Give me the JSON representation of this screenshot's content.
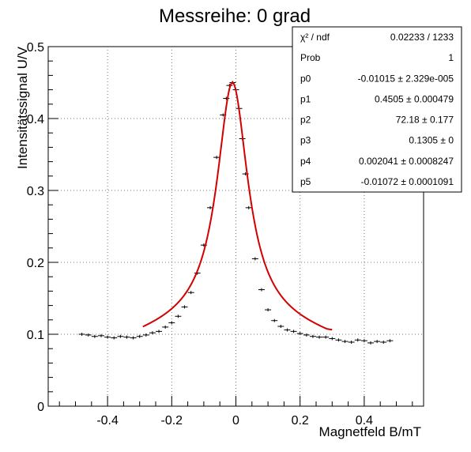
{
  "chart_data": {
    "type": "scatter",
    "title": "Messreihe: 0 grad",
    "xlabel": "Magnetfeld B/mT",
    "ylabel": "Intensitätssignal U/V",
    "xlim": [
      -0.585,
      0.585
    ],
    "ylim": [
      0,
      0.5
    ],
    "xticks": [
      -0.4,
      -0.2,
      0,
      0.2,
      0.4
    ],
    "xtick_labels": [
      "-0.4",
      "-0.2",
      "0",
      "0.2",
      "0.4"
    ],
    "yticks": [
      0,
      0.1,
      0.2,
      0.3,
      0.4,
      0.5
    ],
    "ytick_labels": [
      "0",
      "0.1",
      "0.2",
      "0.3",
      "0.4",
      "0.5"
    ],
    "grid": true,
    "legend": "none",
    "fit_range": [
      -0.29,
      0.3
    ],
    "series": [
      {
        "kind": "data",
        "color": "#000000",
        "x": [
          -0.48,
          -0.46,
          -0.44,
          -0.42,
          -0.4,
          -0.38,
          -0.36,
          -0.34,
          -0.32,
          -0.3,
          -0.28,
          -0.26,
          -0.24,
          -0.22,
          -0.2,
          -0.18,
          -0.16,
          -0.14,
          -0.12,
          -0.1,
          -0.08,
          -0.06,
          -0.04,
          -0.03,
          -0.02,
          -0.01,
          0.0,
          0.01,
          0.02,
          0.03,
          0.04,
          0.06,
          0.08,
          0.1,
          0.12,
          0.14,
          0.16,
          0.18,
          0.2,
          0.22,
          0.24,
          0.26,
          0.28,
          0.3,
          0.32,
          0.34,
          0.36,
          0.38,
          0.4,
          0.42,
          0.44,
          0.46,
          0.48
        ],
        "y": [
          0.1,
          0.099,
          0.097,
          0.098,
          0.096,
          0.095,
          0.097,
          0.096,
          0.095,
          0.097,
          0.099,
          0.102,
          0.104,
          0.11,
          0.116,
          0.125,
          0.138,
          0.158,
          0.185,
          0.224,
          0.276,
          0.346,
          0.405,
          0.428,
          0.446,
          0.45,
          0.44,
          0.414,
          0.372,
          0.323,
          0.276,
          0.205,
          0.162,
          0.134,
          0.119,
          0.111,
          0.106,
          0.104,
          0.101,
          0.099,
          0.097,
          0.096,
          0.096,
          0.094,
          0.092,
          0.09,
          0.089,
          0.092,
          0.091,
          0.088,
          0.09,
          0.089,
          0.091
        ]
      },
      {
        "kind": "fit",
        "color": "#d40000",
        "x_range": [
          -0.29,
          0.3
        ]
      }
    ],
    "stats": [
      {
        "label": "χ² / ndf",
        "value": "0.02233 / 1233"
      },
      {
        "label": "Prob",
        "value": "1"
      },
      {
        "label": "p0",
        "value": "-0.01015 ± 2.329e-005"
      },
      {
        "label": "p1",
        "value": "0.4505 ± 0.000479"
      },
      {
        "label": "p2",
        "value": "72.18 ± 0.177"
      },
      {
        "label": "p3",
        "value": "0.1305 ±     0"
      },
      {
        "label": "p4",
        "value": "0.002041 ± 0.0008247"
      },
      {
        "label": "p5",
        "value": "-0.01072 ± 0.0001091"
      }
    ]
  }
}
